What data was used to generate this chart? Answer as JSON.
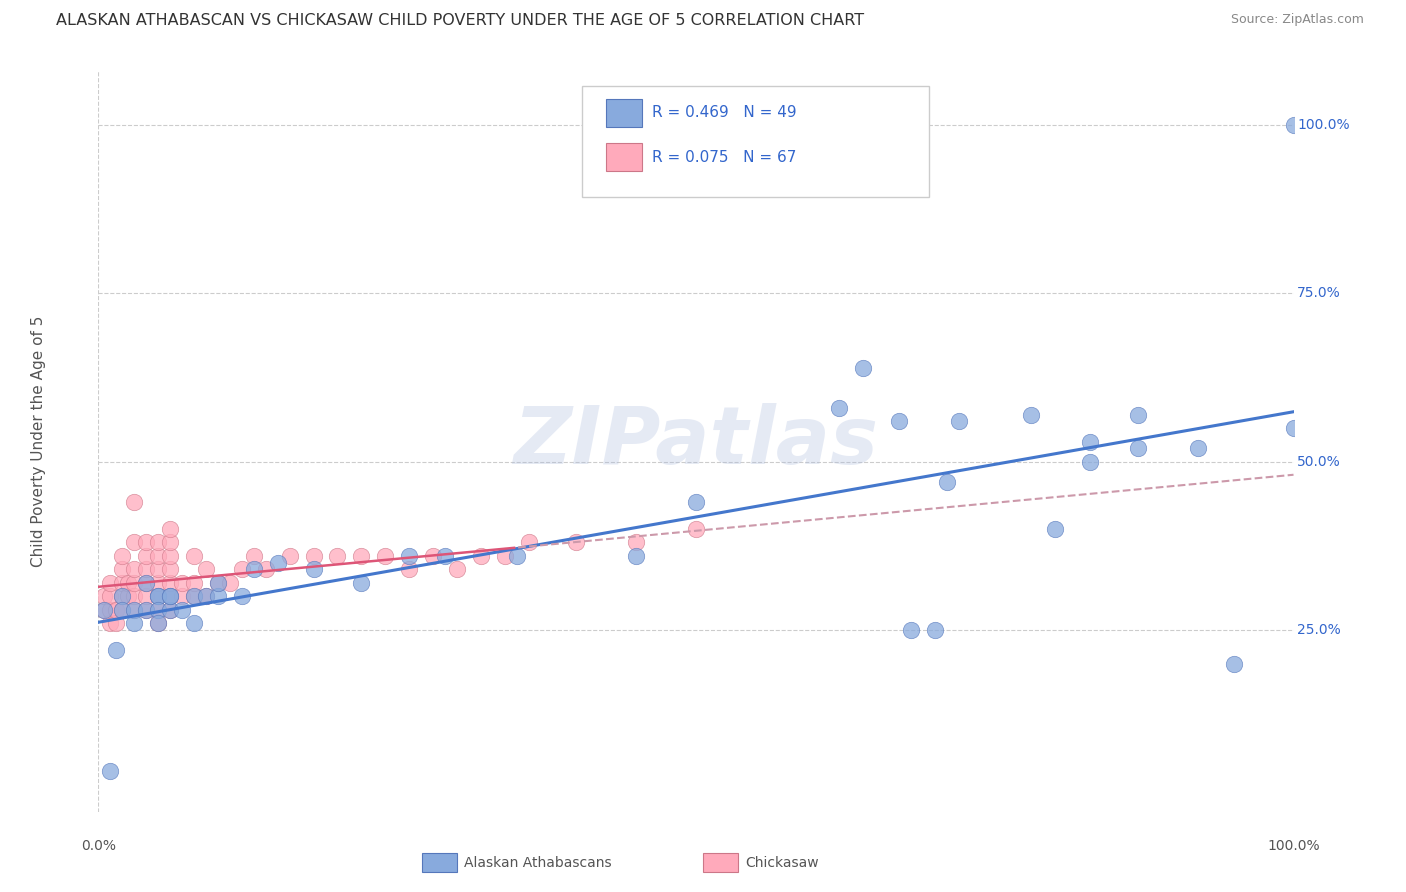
{
  "title": "ALASKAN ATHABASCAN VS CHICKASAW CHILD POVERTY UNDER THE AGE OF 5 CORRELATION CHART",
  "source": "Source: ZipAtlas.com",
  "ylabel": "Child Poverty Under the Age of 5",
  "xlim": [
    0,
    1.0
  ],
  "ylim": [
    -0.02,
    1.08
  ],
  "ytick_positions": [
    0.25,
    0.5,
    0.75,
    1.0
  ],
  "ytick_labels": [
    "25.0%",
    "50.0%",
    "75.0%",
    "100.0%"
  ],
  "xtick_positions": [
    0.0,
    1.0
  ],
  "xtick_labels": [
    "0.0%",
    "100.0%"
  ],
  "legend1_label": "R = 0.469   N = 49",
  "legend2_label": "R = 0.075   N = 67",
  "legend_blue_label": "Alaskan Athabascans",
  "legend_pink_label": "Chickasaw",
  "blue_scatter_color": "#88AADD",
  "blue_edge_color": "#5577BB",
  "pink_scatter_color": "#FFAABB",
  "pink_edge_color": "#CC7788",
  "blue_line_color": "#4477CC",
  "pink_solid_color": "#DD5577",
  "pink_dash_color": "#CC99AA",
  "grid_color": "#CCCCCC",
  "watermark_color": "#AABBDD",
  "watermark_alpha": 0.3,
  "blue_scatter_x": [
    0.005,
    0.01,
    0.015,
    0.02,
    0.02,
    0.03,
    0.03,
    0.04,
    0.04,
    0.05,
    0.05,
    0.05,
    0.05,
    0.06,
    0.06,
    0.06,
    0.07,
    0.08,
    0.08,
    0.09,
    0.1,
    0.1,
    0.12,
    0.13,
    0.15,
    0.18,
    0.22,
    0.26,
    0.29,
    0.35,
    0.45,
    0.5,
    0.62,
    0.64,
    0.67,
    0.68,
    0.7,
    0.71,
    0.72,
    0.78,
    0.8,
    0.83,
    0.83,
    0.87,
    0.87,
    0.92,
    0.95,
    1.0,
    1.0
  ],
  "blue_scatter_y": [
    0.28,
    0.04,
    0.22,
    0.3,
    0.28,
    0.28,
    0.26,
    0.28,
    0.32,
    0.3,
    0.3,
    0.28,
    0.26,
    0.28,
    0.3,
    0.3,
    0.28,
    0.26,
    0.3,
    0.3,
    0.3,
    0.32,
    0.3,
    0.34,
    0.35,
    0.34,
    0.32,
    0.36,
    0.36,
    0.36,
    0.36,
    0.44,
    0.58,
    0.64,
    0.56,
    0.25,
    0.25,
    0.47,
    0.56,
    0.57,
    0.4,
    0.5,
    0.53,
    0.57,
    0.52,
    0.52,
    0.2,
    0.55,
    1.0
  ],
  "pink_scatter_x": [
    0.005,
    0.005,
    0.01,
    0.01,
    0.01,
    0.01,
    0.015,
    0.015,
    0.02,
    0.02,
    0.02,
    0.02,
    0.02,
    0.025,
    0.025,
    0.03,
    0.03,
    0.03,
    0.03,
    0.03,
    0.03,
    0.04,
    0.04,
    0.04,
    0.04,
    0.04,
    0.04,
    0.05,
    0.05,
    0.05,
    0.05,
    0.05,
    0.05,
    0.05,
    0.06,
    0.06,
    0.06,
    0.06,
    0.06,
    0.06,
    0.06,
    0.07,
    0.07,
    0.08,
    0.08,
    0.08,
    0.09,
    0.09,
    0.1,
    0.11,
    0.12,
    0.13,
    0.14,
    0.16,
    0.18,
    0.2,
    0.22,
    0.24,
    0.26,
    0.28,
    0.3,
    0.32,
    0.34,
    0.36,
    0.4,
    0.45,
    0.5
  ],
  "pink_scatter_y": [
    0.28,
    0.3,
    0.26,
    0.28,
    0.3,
    0.32,
    0.26,
    0.28,
    0.28,
    0.3,
    0.32,
    0.34,
    0.36,
    0.3,
    0.32,
    0.28,
    0.3,
    0.32,
    0.34,
    0.38,
    0.44,
    0.28,
    0.3,
    0.32,
    0.34,
    0.36,
    0.38,
    0.26,
    0.28,
    0.3,
    0.32,
    0.34,
    0.36,
    0.38,
    0.28,
    0.3,
    0.32,
    0.34,
    0.36,
    0.38,
    0.4,
    0.3,
    0.32,
    0.3,
    0.32,
    0.36,
    0.3,
    0.34,
    0.32,
    0.32,
    0.34,
    0.36,
    0.34,
    0.36,
    0.36,
    0.36,
    0.36,
    0.36,
    0.34,
    0.36,
    0.34,
    0.36,
    0.36,
    0.38,
    0.38,
    0.38,
    0.4
  ]
}
